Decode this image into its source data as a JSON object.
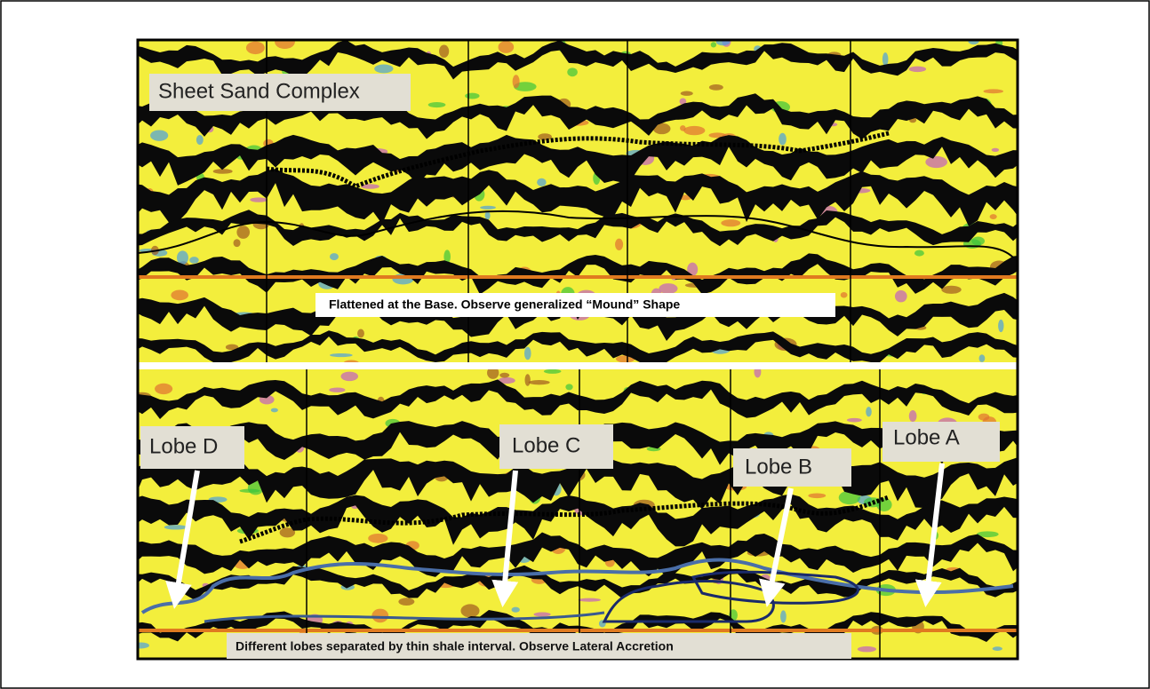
{
  "figure": {
    "top_label": "Sheet Sand Complex",
    "middle_caption": "Flattened at the Base. Observe  generalized “Mound” Shape",
    "lobes": [
      "Lobe D",
      "Lobe C",
      "Lobe B",
      "Lobe A"
    ],
    "bottom_caption": "Different lobes separated by thin shale interval. Observe Lateral Accretion"
  }
}
